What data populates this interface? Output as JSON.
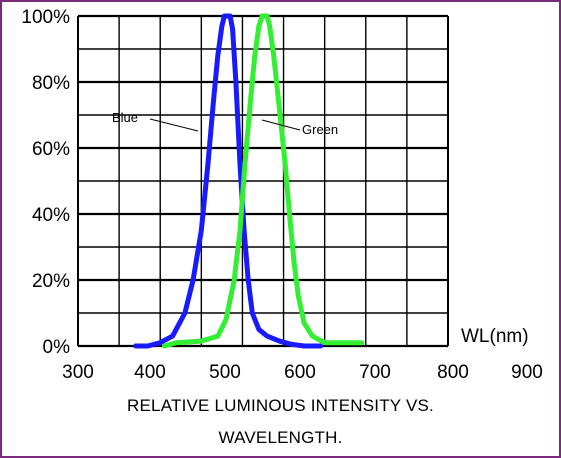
{
  "chart_data": {
    "type": "line",
    "title_lines": [
      "RELATIVE LUMINOUS INTENSITY VS.",
      "WAVELENGTH."
    ],
    "xlabel": "WL(nm)",
    "ylabel": "",
    "xlim": [
      300,
      900
    ],
    "ylim": [
      0,
      100
    ],
    "x_ticks": [
      300,
      400,
      500,
      600,
      700,
      800,
      900
    ],
    "x_tick_labels": [
      "300",
      "400",
      "500",
      "600",
      "700",
      "800",
      "900"
    ],
    "y_ticks": [
      0,
      20,
      40,
      60,
      80,
      100
    ],
    "y_tick_labels": [
      "0%",
      "20%",
      "40%",
      "60%",
      "80%",
      "100%"
    ],
    "grid": true,
    "legend": "inline labels",
    "series": [
      {
        "name": "Blue",
        "color": "#1a1aff",
        "points": [
          [
            370,
            0
          ],
          [
            385,
            0
          ],
          [
            400,
            1
          ],
          [
            415,
            3
          ],
          [
            430,
            10
          ],
          [
            440,
            20
          ],
          [
            450,
            35
          ],
          [
            458,
            55
          ],
          [
            465,
            75
          ],
          [
            470,
            88
          ],
          [
            475,
            97
          ],
          [
            478,
            100
          ],
          [
            485,
            100
          ],
          [
            488,
            96
          ],
          [
            492,
            80
          ],
          [
            497,
            55
          ],
          [
            502,
            35
          ],
          [
            507,
            20
          ],
          [
            512,
            10
          ],
          [
            520,
            5
          ],
          [
            530,
            3
          ],
          [
            545,
            1.5
          ],
          [
            560,
            0.5
          ],
          [
            575,
            0
          ],
          [
            595,
            0
          ]
        ]
      },
      {
        "name": "Green",
        "color": "#33ee33",
        "points": [
          [
            405,
            0
          ],
          [
            420,
            1
          ],
          [
            450,
            1.5
          ],
          [
            470,
            3
          ],
          [
            480,
            8
          ],
          [
            490,
            20
          ],
          [
            497,
            35
          ],
          [
            503,
            55
          ],
          [
            510,
            75
          ],
          [
            515,
            88
          ],
          [
            520,
            97
          ],
          [
            524,
            100
          ],
          [
            530,
            100
          ],
          [
            533,
            97
          ],
          [
            538,
            88
          ],
          [
            545,
            72
          ],
          [
            552,
            55
          ],
          [
            558,
            38
          ],
          [
            563,
            25
          ],
          [
            568,
            15
          ],
          [
            575,
            7
          ],
          [
            585,
            3
          ],
          [
            600,
            1
          ],
          [
            620,
            1
          ],
          [
            645,
            1
          ]
        ]
      }
    ],
    "annotations": [
      {
        "text": "Blue",
        "series": "Blue",
        "at": [
          468,
          65
        ]
      },
      {
        "text": "Green",
        "series": "Green",
        "at": [
          540,
          65
        ]
      }
    ]
  }
}
